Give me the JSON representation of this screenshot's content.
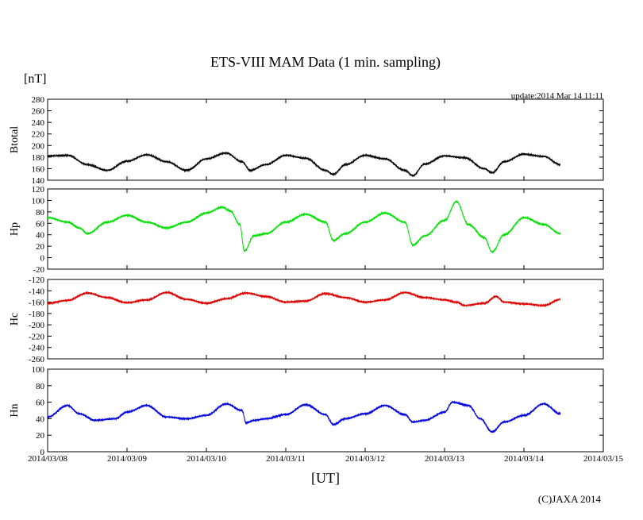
{
  "chart_data": {
    "type": "line",
    "title": "ETS-VIII MAM Data (1 min. sampling)",
    "unit_label": "[nT]",
    "update_label": "update:2014 Mar 14 11:11",
    "xlabel": "[UT]",
    "credit": "(C)JAXA 2014",
    "x_range": [
      "2014/03/08",
      "2014/03/15"
    ],
    "x_tick_labels": [
      "2014/03/08",
      "2014/03/09",
      "2014/03/10",
      "2014/03/11",
      "2014/03/12",
      "2014/03/13",
      "2014/03/14",
      "2014/03/15"
    ],
    "data_end": "2014/03/14 11:11",
    "panels": [
      {
        "name": "Btotal",
        "color": "#000000",
        "ylim": [
          140,
          280
        ],
        "step": 20,
        "x": [
          0,
          0.25,
          0.5,
          0.75,
          1.0,
          1.25,
          1.5,
          1.75,
          2.0,
          2.25,
          2.45,
          2.55,
          2.75,
          3.0,
          3.25,
          3.5,
          3.6,
          3.75,
          4.0,
          4.25,
          4.5,
          4.6,
          4.75,
          5.0,
          5.25,
          5.5,
          5.6,
          5.75,
          6.0,
          6.25,
          6.46
        ],
        "values": [
          182,
          183,
          167,
          157,
          173,
          184,
          172,
          157,
          177,
          187,
          172,
          157,
          167,
          183,
          178,
          157,
          150,
          167,
          183,
          177,
          157,
          148,
          168,
          182,
          179,
          160,
          153,
          172,
          185,
          181,
          167
        ]
      },
      {
        "name": "Hp",
        "color": "#00e000",
        "ylim": [
          -20,
          120
        ],
        "step": 20,
        "x": [
          0,
          0.25,
          0.4,
          0.5,
          0.75,
          1.0,
          1.25,
          1.5,
          1.75,
          2.0,
          2.2,
          2.3,
          2.42,
          2.48,
          2.6,
          2.75,
          3.0,
          3.25,
          3.5,
          3.6,
          3.75,
          4.0,
          4.25,
          4.5,
          4.6,
          4.75,
          5.0,
          5.15,
          5.3,
          5.5,
          5.6,
          5.75,
          6.0,
          6.25,
          6.46
        ],
        "values": [
          70,
          62,
          52,
          42,
          62,
          74,
          62,
          52,
          62,
          78,
          88,
          82,
          58,
          12,
          38,
          42,
          62,
          76,
          62,
          30,
          42,
          62,
          78,
          62,
          22,
          38,
          65,
          98,
          58,
          35,
          10,
          40,
          70,
          58,
          42
        ]
      },
      {
        "name": "Hc",
        "color": "#dd0000",
        "ylim": [
          -260,
          -120
        ],
        "step": 20,
        "x": [
          0,
          0.25,
          0.5,
          0.75,
          1.0,
          1.25,
          1.5,
          1.75,
          2.0,
          2.25,
          2.5,
          2.75,
          3.0,
          3.25,
          3.5,
          3.75,
          4.0,
          4.25,
          4.5,
          4.75,
          5.0,
          5.15,
          5.25,
          5.5,
          5.65,
          5.75,
          6.0,
          6.25,
          6.46
        ],
        "values": [
          -162,
          -157,
          -144,
          -152,
          -161,
          -156,
          -143,
          -155,
          -162,
          -154,
          -144,
          -150,
          -160,
          -158,
          -145,
          -152,
          -160,
          -156,
          -143,
          -152,
          -156,
          -160,
          -166,
          -162,
          -150,
          -160,
          -163,
          -166,
          -155
        ]
      },
      {
        "name": "Hn",
        "color": "#0000dd",
        "ylim": [
          0,
          100
        ],
        "step": 20,
        "x": [
          0,
          0.25,
          0.4,
          0.6,
          0.85,
          1.0,
          1.25,
          1.5,
          1.75,
          2.0,
          2.25,
          2.45,
          2.5,
          2.6,
          2.75,
          3.0,
          3.25,
          3.5,
          3.6,
          3.75,
          4.0,
          4.25,
          4.5,
          4.6,
          4.75,
          5.0,
          5.1,
          5.3,
          5.45,
          5.6,
          5.75,
          6.0,
          6.25,
          6.46
        ],
        "values": [
          42,
          56,
          46,
          38,
          40,
          48,
          56,
          42,
          40,
          44,
          58,
          50,
          35,
          38,
          40,
          45,
          57,
          45,
          33,
          40,
          46,
          56,
          45,
          36,
          38,
          48,
          60,
          56,
          40,
          24,
          36,
          44,
          58,
          46
        ]
      }
    ]
  }
}
